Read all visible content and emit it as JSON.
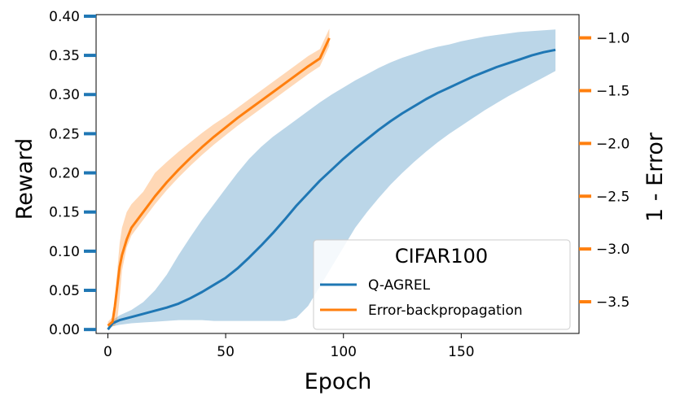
{
  "chart_data": {
    "type": "line",
    "xlabel": "Epoch",
    "ylabel": "Reward",
    "y2label": "1 - Error",
    "xlim": [
      -5,
      200
    ],
    "ylim": [
      -0.005,
      0.402
    ],
    "y2lim": [
      -3.8,
      -0.78
    ],
    "x_ticks": [
      0,
      50,
      100,
      150
    ],
    "y_ticks": [
      0.0,
      0.05,
      0.1,
      0.15,
      0.2,
      0.25,
      0.3,
      0.35,
      0.4
    ],
    "y_tick_labels": [
      "0.00",
      "0.05",
      "0.10",
      "0.15",
      "0.20",
      "0.25",
      "0.30",
      "0.35",
      "0.40"
    ],
    "y2_ticks": [
      -1.0,
      -1.5,
      -2.0,
      -2.5,
      -3.0,
      -3.5
    ],
    "y2_tick_labels": [
      "−1.0",
      "−1.5",
      "−2.0",
      "−2.5",
      "−3.0",
      "−3.5"
    ],
    "grid": false,
    "legend": {
      "title": "CIFAR100",
      "position": "lower-right"
    },
    "series": [
      {
        "name": "Q-AGREL",
        "color": "#1f77b4",
        "band_color": "#1f77b4",
        "x": [
          0,
          2,
          5,
          10,
          15,
          20,
          25,
          30,
          35,
          40,
          45,
          50,
          55,
          60,
          65,
          70,
          75,
          80,
          85,
          90,
          95,
          100,
          105,
          110,
          115,
          120,
          125,
          130,
          135,
          140,
          145,
          150,
          155,
          160,
          165,
          170,
          175,
          180,
          185,
          190
        ],
        "y": [
          0.0,
          0.008,
          0.012,
          0.016,
          0.02,
          0.024,
          0.028,
          0.033,
          0.04,
          0.048,
          0.057,
          0.066,
          0.078,
          0.092,
          0.107,
          0.123,
          0.14,
          0.158,
          0.174,
          0.19,
          0.204,
          0.218,
          0.231,
          0.243,
          0.255,
          0.266,
          0.276,
          0.285,
          0.294,
          0.302,
          0.309,
          0.316,
          0.323,
          0.329,
          0.335,
          0.34,
          0.345,
          0.35,
          0.354,
          0.357
        ],
        "lower": [
          0.0,
          0.004,
          0.006,
          0.008,
          0.009,
          0.01,
          0.011,
          0.012,
          0.012,
          0.012,
          0.011,
          0.011,
          0.011,
          0.011,
          0.011,
          0.011,
          0.011,
          0.015,
          0.03,
          0.055,
          0.08,
          0.105,
          0.13,
          0.15,
          0.168,
          0.185,
          0.2,
          0.214,
          0.227,
          0.239,
          0.25,
          0.26,
          0.27,
          0.28,
          0.289,
          0.298,
          0.306,
          0.314,
          0.322,
          0.33
        ],
        "upper": [
          0.0,
          0.012,
          0.018,
          0.025,
          0.035,
          0.05,
          0.07,
          0.095,
          0.118,
          0.14,
          0.16,
          0.18,
          0.2,
          0.218,
          0.233,
          0.246,
          0.257,
          0.268,
          0.279,
          0.29,
          0.3,
          0.309,
          0.318,
          0.326,
          0.334,
          0.341,
          0.347,
          0.352,
          0.357,
          0.361,
          0.364,
          0.368,
          0.371,
          0.374,
          0.376,
          0.378,
          0.38,
          0.381,
          0.382,
          0.383
        ]
      },
      {
        "name": "Error-backpropagation",
        "color": "#ff7f0e",
        "band_color": "#ff7f0e",
        "x": [
          0,
          2,
          3,
          4,
          5,
          6,
          8,
          10,
          15,
          20,
          25,
          30,
          35,
          40,
          45,
          50,
          55,
          60,
          65,
          70,
          75,
          80,
          85,
          90,
          94
        ],
        "y": [
          0.005,
          0.01,
          0.03,
          0.055,
          0.08,
          0.095,
          0.115,
          0.13,
          0.15,
          0.17,
          0.188,
          0.204,
          0.219,
          0.233,
          0.246,
          0.258,
          0.27,
          0.281,
          0.292,
          0.303,
          0.314,
          0.325,
          0.336,
          0.346,
          0.372
        ],
        "lower": [
          0.0,
          0.004,
          0.005,
          0.012,
          0.04,
          0.075,
          0.105,
          0.12,
          0.14,
          0.16,
          0.178,
          0.194,
          0.209,
          0.223,
          0.236,
          0.248,
          0.26,
          0.271,
          0.282,
          0.293,
          0.304,
          0.315,
          0.326,
          0.336,
          0.362
        ],
        "upper": [
          0.01,
          0.016,
          0.04,
          0.075,
          0.11,
          0.13,
          0.15,
          0.16,
          0.176,
          0.2,
          0.214,
          0.227,
          0.239,
          0.251,
          0.262,
          0.272,
          0.283,
          0.294,
          0.305,
          0.316,
          0.327,
          0.338,
          0.349,
          0.358,
          0.384
        ]
      }
    ]
  }
}
